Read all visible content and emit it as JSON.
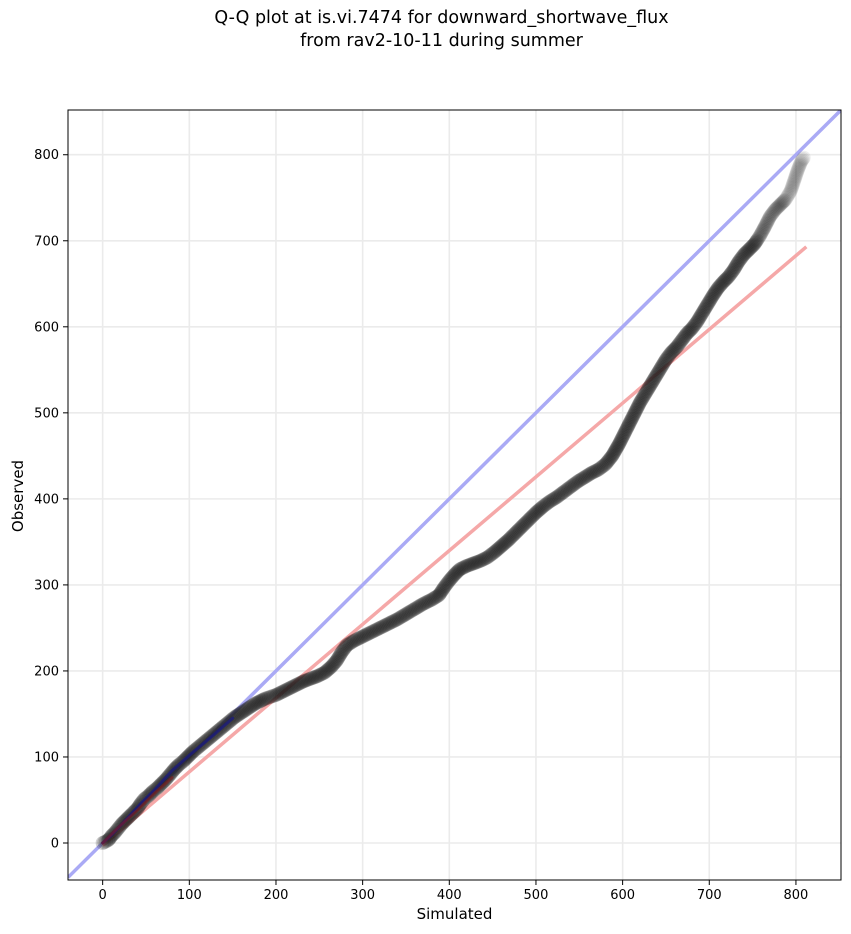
{
  "chart_data": {
    "type": "scatter",
    "title_lines": [
      "Q-Q plot at is.vi.7474 for downward_shortwave_flux",
      "from rav2-10-11 during summer"
    ],
    "xlabel": "Simulated",
    "ylabel": "Observed",
    "xlim": [
      -40,
      852
    ],
    "ylim": [
      -43,
      852
    ],
    "xticks": [
      0,
      100,
      200,
      300,
      400,
      500,
      600,
      700,
      800
    ],
    "yticks": [
      0,
      100,
      200,
      300,
      400,
      500,
      600,
      700,
      800
    ],
    "grid": true,
    "legend": "none",
    "colors": {
      "points": "#1a1a1a",
      "identity_line": "#aaaaf5",
      "fit_line": "#f5a8a8",
      "low_overlay": "#1a1a80",
      "low_overlay_red": "#8a1a1a"
    },
    "series": [
      {
        "kind": "quantiles",
        "points": [
          [
            0,
            0
          ],
          [
            2,
            1
          ],
          [
            4,
            2
          ],
          [
            6,
            3
          ],
          [
            8,
            5
          ],
          [
            10,
            8
          ],
          [
            14,
            12
          ],
          [
            18,
            17
          ],
          [
            22,
            22
          ],
          [
            27,
            27
          ],
          [
            32,
            32
          ],
          [
            36,
            36
          ],
          [
            40,
            40
          ],
          [
            44,
            46
          ],
          [
            48,
            51
          ],
          [
            53,
            55
          ],
          [
            58,
            60
          ],
          [
            63,
            64
          ],
          [
            68,
            69
          ],
          [
            73,
            74
          ],
          [
            78,
            80
          ],
          [
            83,
            86
          ],
          [
            88,
            91
          ],
          [
            93,
            95
          ],
          [
            98,
            100
          ],
          [
            104,
            106
          ],
          [
            110,
            111
          ],
          [
            116,
            116
          ],
          [
            122,
            121
          ],
          [
            128,
            126
          ],
          [
            134,
            131
          ],
          [
            140,
            136
          ],
          [
            146,
            141
          ],
          [
            152,
            146
          ],
          [
            158,
            150
          ],
          [
            164,
            154
          ],
          [
            170,
            158
          ],
          [
            176,
            162
          ],
          [
            182,
            165
          ],
          [
            188,
            168
          ],
          [
            194,
            170
          ],
          [
            200,
            172
          ],
          [
            208,
            176
          ],
          [
            216,
            180
          ],
          [
            224,
            184
          ],
          [
            232,
            188
          ],
          [
            240,
            191
          ],
          [
            248,
            194
          ],
          [
            256,
            198
          ],
          [
            264,
            205
          ],
          [
            270,
            212
          ],
          [
            276,
            222
          ],
          [
            282,
            230
          ],
          [
            290,
            235
          ],
          [
            300,
            240
          ],
          [
            310,
            245
          ],
          [
            320,
            250
          ],
          [
            330,
            255
          ],
          [
            340,
            260
          ],
          [
            350,
            266
          ],
          [
            360,
            272
          ],
          [
            370,
            278
          ],
          [
            380,
            283
          ],
          [
            388,
            288
          ],
          [
            394,
            297
          ],
          [
            400,
            305
          ],
          [
            406,
            312
          ],
          [
            412,
            318
          ],
          [
            420,
            322
          ],
          [
            428,
            325
          ],
          [
            436,
            328
          ],
          [
            444,
            332
          ],
          [
            452,
            338
          ],
          [
            460,
            345
          ],
          [
            468,
            352
          ],
          [
            476,
            360
          ],
          [
            484,
            368
          ],
          [
            492,
            376
          ],
          [
            500,
            384
          ],
          [
            508,
            391
          ],
          [
            516,
            397
          ],
          [
            524,
            402
          ],
          [
            532,
            408
          ],
          [
            540,
            414
          ],
          [
            548,
            420
          ],
          [
            556,
            425
          ],
          [
            564,
            430
          ],
          [
            572,
            434
          ],
          [
            580,
            440
          ],
          [
            588,
            450
          ],
          [
            596,
            464
          ],
          [
            602,
            476
          ],
          [
            608,
            488
          ],
          [
            614,
            500
          ],
          [
            620,
            512
          ],
          [
            626,
            522
          ],
          [
            632,
            532
          ],
          [
            638,
            542
          ],
          [
            644,
            552
          ],
          [
            650,
            562
          ],
          [
            656,
            570
          ],
          [
            662,
            576
          ],
          [
            668,
            584
          ],
          [
            674,
            592
          ],
          [
            680,
            598
          ],
          [
            686,
            606
          ],
          [
            692,
            616
          ],
          [
            698,
            626
          ],
          [
            704,
            636
          ],
          [
            710,
            645
          ],
          [
            716,
            652
          ],
          [
            722,
            658
          ],
          [
            728,
            666
          ],
          [
            734,
            676
          ],
          [
            740,
            684
          ],
          [
            746,
            690
          ],
          [
            752,
            696
          ],
          [
            758,
            705
          ],
          [
            764,
            716
          ],
          [
            770,
            728
          ],
          [
            776,
            736
          ],
          [
            782,
            742
          ],
          [
            788,
            748
          ],
          [
            794,
            758
          ],
          [
            798,
            770
          ],
          [
            802,
            782
          ],
          [
            806,
            792
          ],
          [
            810,
            798
          ]
        ]
      },
      {
        "kind": "identity_line",
        "points": [
          [
            -40,
            -40
          ],
          [
            852,
            852
          ]
        ]
      },
      {
        "kind": "fit_line",
        "points": [
          [
            0,
            -3
          ],
          [
            812,
            693
          ]
        ]
      },
      {
        "kind": "low_overlay",
        "points": [
          [
            0,
            0
          ],
          [
            10,
            9
          ],
          [
            25,
            25
          ],
          [
            45,
            47
          ],
          [
            60,
            62
          ],
          [
            80,
            84
          ],
          [
            100,
            102
          ],
          [
            125,
            123
          ],
          [
            150,
            145
          ]
        ]
      },
      {
        "kind": "low_overlay_red",
        "points": [
          [
            0,
            0
          ],
          [
            20,
            20
          ],
          [
            40,
            38
          ],
          [
            60,
            58
          ],
          [
            80,
            76
          ]
        ]
      }
    ]
  }
}
